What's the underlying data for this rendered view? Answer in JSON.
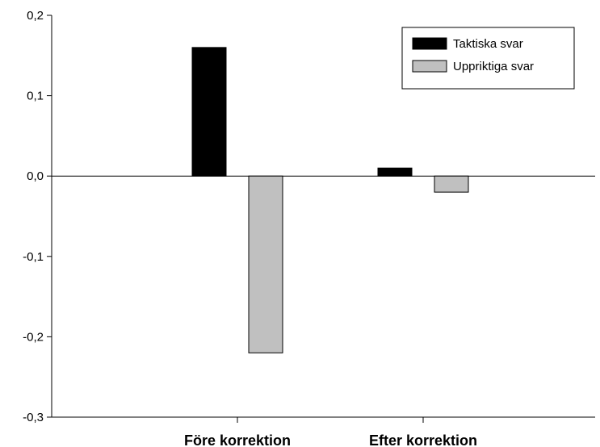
{
  "chart_data": {
    "type": "bar",
    "categories": [
      "Före korrektion",
      "Efter korrektion"
    ],
    "series": [
      {
        "name": "Taktiska svar",
        "values": [
          0.16,
          0.01
        ],
        "color": "#000000"
      },
      {
        "name": "Uppriktiga svar",
        "values": [
          -0.22,
          -0.02
        ],
        "color": "#c0c0c0"
      }
    ],
    "ylim": [
      -0.3,
      0.2
    ],
    "yticks": [
      0.2,
      0.1,
      0.0,
      -0.1,
      -0.2,
      -0.3
    ],
    "ytick_labels": [
      "0,2",
      "0,1",
      "0,0",
      "-0,1",
      "-0,2",
      "-0,3"
    ],
    "title": "",
    "xlabel": "",
    "ylabel": "",
    "legend_position": "top-right",
    "grid": false
  }
}
